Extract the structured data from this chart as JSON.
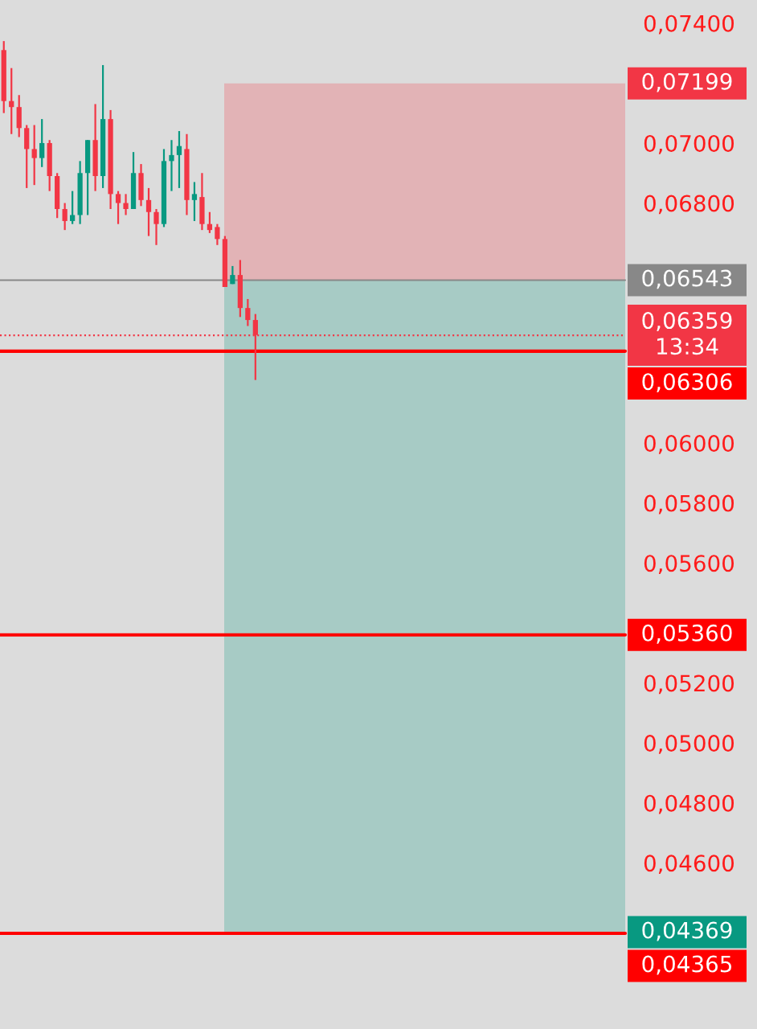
{
  "chart_data": {
    "type": "candlestick",
    "categories": [
      null,
      null,
      null,
      null,
      null,
      null,
      null,
      null,
      null,
      null,
      null,
      null,
      null,
      null,
      null,
      null,
      null,
      null,
      null,
      null,
      null,
      null,
      null,
      null,
      null,
      null,
      null,
      null,
      null,
      null,
      null,
      null,
      null,
      null,
      null,
      null,
      null,
      null,
      null,
      null,
      null,
      null,
      null,
      null,
      null,
      null,
      null,
      null,
      null,
      null,
      null,
      null,
      null,
      null,
      null,
      null,
      null,
      null,
      null,
      null,
      null,
      null,
      null,
      null,
      null,
      null,
      null,
      null,
      null,
      null,
      null,
      null,
      null,
      null,
      null,
      null,
      null,
      null,
      null,
      null,
      null,
      null
    ],
    "ohlc": [
      [
        0.0731,
        0.0734,
        0.071,
        0.0714
      ],
      [
        0.0714,
        0.0725,
        0.0703,
        0.0712
      ],
      [
        0.0712,
        0.0716,
        0.0702,
        0.0705
      ],
      [
        0.0705,
        0.0706,
        0.0685,
        0.0698
      ],
      [
        0.0698,
        0.0706,
        0.0686,
        0.0695
      ],
      [
        0.0695,
        0.0708,
        0.0692,
        0.07
      ],
      [
        0.07,
        0.0701,
        0.0684,
        0.0689
      ],
      [
        0.0689,
        0.069,
        0.0675,
        0.0678
      ],
      [
        0.0678,
        0.068,
        0.0671,
        0.0674
      ],
      [
        0.0674,
        0.0684,
        0.0673,
        0.0676
      ],
      [
        0.0676,
        0.0694,
        0.0673,
        0.069
      ],
      [
        0.069,
        0.0701,
        0.0676,
        0.0701
      ],
      [
        0.0701,
        0.0713,
        0.0684,
        0.0689
      ],
      [
        0.0689,
        0.0726,
        0.0685,
        0.0708
      ],
      [
        0.0708,
        0.0711,
        0.0678,
        0.0683
      ],
      [
        0.0683,
        0.0684,
        0.0673,
        0.068
      ],
      [
        0.068,
        0.0683,
        0.0676,
        0.0678
      ],
      [
        0.0678,
        0.0697,
        0.0678,
        0.069
      ],
      [
        0.069,
        0.0693,
        0.0679,
        0.0681
      ],
      [
        0.0681,
        0.0685,
        0.0669,
        0.0677
      ],
      [
        0.0677,
        0.0678,
        0.0666,
        0.0673
      ],
      [
        0.0673,
        0.0698,
        0.0672,
        0.0694
      ],
      [
        0.0694,
        0.0701,
        0.0684,
        0.0696
      ],
      [
        0.0696,
        0.0704,
        0.0685,
        0.0699
      ],
      [
        0.0698,
        0.0703,
        0.0676,
        0.0681
      ],
      [
        0.0681,
        0.0687,
        0.0674,
        0.0683
      ],
      [
        0.0682,
        0.069,
        0.0671,
        0.0673
      ],
      [
        0.0673,
        0.0677,
        0.067,
        0.0671
      ],
      [
        0.0672,
        0.0673,
        0.0666,
        0.0668
      ],
      [
        0.0668,
        0.0669,
        0.0652,
        0.0652
      ],
      [
        0.0653,
        0.0659,
        0.0653,
        0.0656
      ],
      [
        0.0656,
        0.0661,
        0.0642,
        0.0645
      ],
      [
        0.0645,
        0.0648,
        0.0639,
        0.0641
      ],
      [
        0.0641,
        0.0643,
        0.0621,
        0.0636
      ],
      null,
      null,
      null,
      null,
      null,
      null,
      null,
      null,
      null,
      null,
      null,
      null,
      null,
      null,
      null,
      null,
      null,
      null,
      null,
      null,
      null,
      null,
      null,
      null,
      null,
      null,
      null,
      null,
      null,
      null,
      null,
      null,
      null,
      null,
      null,
      null,
      null,
      null,
      null,
      null,
      null,
      null,
      null,
      null,
      null,
      null,
      null,
      null
    ],
    "colors": [
      "#f23645",
      "#f23645",
      "#f23645",
      "#f23645",
      "#f23645",
      "#089981",
      "#f23645",
      "#f23645",
      "#f23645",
      "#089981",
      "#089981",
      "#089981",
      "#f23645",
      "#089981",
      "#f23645",
      "#f23645",
      "#f23645",
      "#089981",
      "#f23645",
      "#f23645",
      "#f23645",
      "#089981",
      "#089981",
      "#089981",
      "#f23645",
      "#089981",
      "#f23645",
      "#f23645",
      "#f23645",
      "#f23645",
      "#089981",
      "#f23645",
      "#f23645",
      "#f23645",
      null,
      null,
      null,
      null,
      null,
      null,
      null,
      null,
      null,
      null,
      null,
      null,
      null,
      null,
      null,
      null,
      null,
      null,
      null,
      null,
      null,
      null,
      null,
      null,
      null,
      null,
      null,
      null,
      null,
      null,
      null,
      null,
      null,
      null,
      null,
      null,
      null,
      null,
      null,
      null,
      null,
      null,
      null,
      null,
      null,
      null,
      null,
      null
    ],
    "ylim": [
      0.04046,
      0.07477
    ],
    "yticks": [
      {
        "value": 0.046,
        "label": "0,04600"
      },
      {
        "value": 0.048,
        "label": "0,04800"
      },
      {
        "value": 0.05,
        "label": "0,05000"
      },
      {
        "value": 0.052,
        "label": "0,05200"
      },
      {
        "value": 0.056,
        "label": "0,05600"
      },
      {
        "value": 0.058,
        "label": "0,05800"
      },
      {
        "value": 0.06,
        "label": "0,06000"
      },
      {
        "value": 0.068,
        "label": "0,06800"
      },
      {
        "value": 0.07,
        "label": "0,07000"
      },
      {
        "value": 0.074,
        "label": "0,07400"
      }
    ],
    "tick_labels": "y",
    "grid": false,
    "bands": [
      {
        "axis": "y",
        "from": 0.06543,
        "to": 0.07199,
        "label": "0,07199",
        "color": "#f23645"
      },
      {
        "axis": "y",
        "from": 0.06543,
        "to": 0.04369,
        "label": "0,04369",
        "color": "#089981"
      }
    ],
    "ref_lines": [
      {
        "axis": "y",
        "value": 0.06543,
        "label": "0,06543",
        "color": "#888888",
        "line_style": "solid"
      },
      {
        "axis": "y",
        "value": 0.06359,
        "label": "0,06359\n13:34",
        "color": "#f23645",
        "line_style": "dotted"
      },
      {
        "axis": "y",
        "value": 0.06306,
        "label": "0,06306",
        "color": "#ff0000",
        "line_style": "solid"
      },
      {
        "axis": "y",
        "value": 0.0536,
        "label": "0,05360",
        "color": "#ff0000",
        "line_style": "solid"
      },
      {
        "axis": "y",
        "value": 0.04365,
        "label": "0,04365",
        "color": "#ff0000",
        "line_style": "solid"
      }
    ]
  }
}
